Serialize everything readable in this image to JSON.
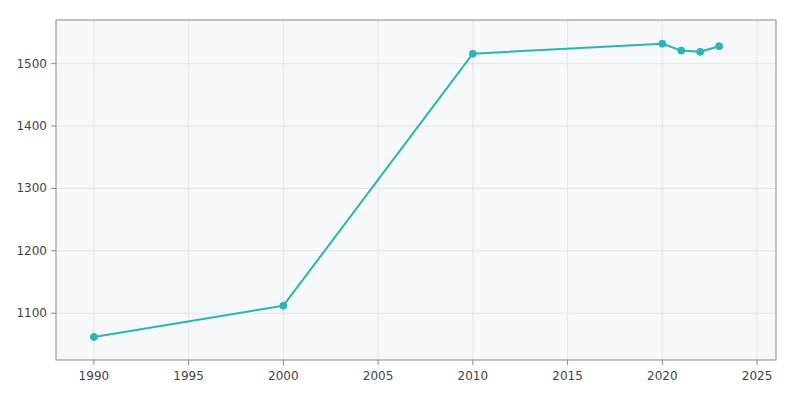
{
  "chart_data": {
    "type": "line",
    "x": [
      1990,
      2000,
      2010,
      2020,
      2021,
      2022,
      2023
    ],
    "values": [
      1062,
      1112,
      1516,
      1532,
      1521,
      1519,
      1528
    ],
    "color": "#2ab5b5",
    "marker": "circle",
    "xlim": [
      1988,
      2026
    ],
    "ylim": [
      1025,
      1570
    ],
    "xticks": [
      1990,
      1995,
      2000,
      2005,
      2010,
      2015,
      2020,
      2025
    ],
    "yticks": [
      1100,
      1200,
      1300,
      1400,
      1500
    ],
    "grid": true
  }
}
